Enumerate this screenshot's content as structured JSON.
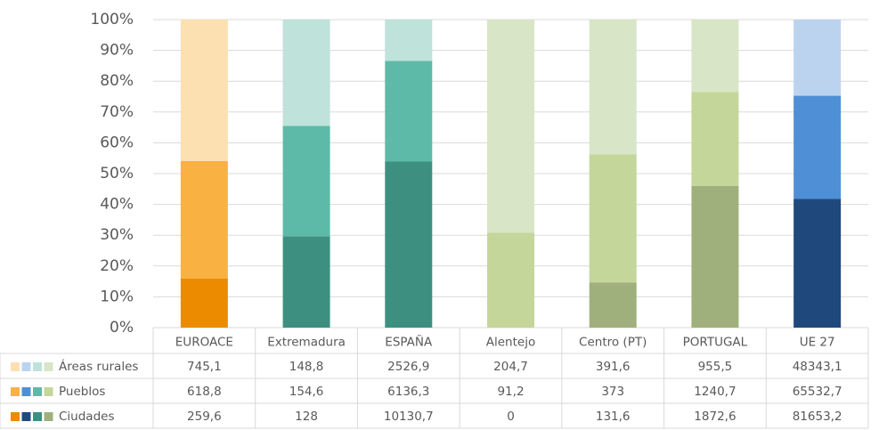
{
  "chart_data": {
    "type": "bar",
    "stacked_percent": true,
    "grid": true,
    "categories": [
      "EUROACE",
      "Extremadura",
      "ESPAÑA",
      "Alentejo",
      "Centro (PT)",
      "PORTUGAL",
      "UE 27"
    ],
    "ylim": [
      0,
      100
    ],
    "yticks": [
      {
        "value": 0,
        "label": "0%"
      },
      {
        "value": 10,
        "label": "10%"
      },
      {
        "value": 20,
        "label": "20%"
      },
      {
        "value": 30,
        "label": "30%"
      },
      {
        "value": 40,
        "label": "40%"
      },
      {
        "value": 50,
        "label": "50%"
      },
      {
        "value": 60,
        "label": "60%"
      },
      {
        "value": 70,
        "label": "70%"
      },
      {
        "value": 80,
        "label": "80%"
      },
      {
        "value": 90,
        "label": "90%"
      },
      {
        "value": 100,
        "label": "100%"
      }
    ],
    "series": [
      {
        "name": "Ciudades",
        "values": [
          259.6,
          128,
          10130.7,
          0,
          131.6,
          1872.6,
          81653.2
        ],
        "value_labels": [
          "259,6",
          "128",
          "10130,7",
          "0",
          "131,6",
          "1872,6",
          "81653,2"
        ],
        "color": [
          "#ed8b00",
          "#3d9080",
          "#3d9080",
          "#9fb07c",
          "#9fb07c",
          "#9fb07c",
          "#1f497d"
        ],
        "legend_colors": [
          "#ed8b00",
          "#1f497d",
          "#3d9080",
          "#9fb07c"
        ]
      },
      {
        "name": "Pueblos",
        "values": [
          618.8,
          154.6,
          6136.3,
          91.2,
          373,
          1240.7,
          65532.7
        ],
        "value_labels": [
          "618,8",
          "154,6",
          "6136,3",
          "91,2",
          "373",
          "1240,7",
          "65532,7"
        ],
        "color": [
          "#f9b142",
          "#5dbaa8",
          "#5dbaa8",
          "#c4d69a",
          "#c4d69a",
          "#c4d69a",
          "#4f8fd6"
        ],
        "legend_colors": [
          "#f9b142",
          "#4f8fd6",
          "#5dbaa8",
          "#c4d69a"
        ]
      },
      {
        "name": "Áreas rurales",
        "values": [
          745.1,
          148.8,
          2526.9,
          204.7,
          391.6,
          955.5,
          48343.1
        ],
        "value_labels": [
          "745,1",
          "148,8",
          "2526,9",
          "204,7",
          "391,6",
          "955,5",
          "48343,1"
        ],
        "color": [
          "#fde0b2",
          "#bfe2da",
          "#bfe2da",
          "#d8e5c6",
          "#d8e5c6",
          "#d8e5c6",
          "#bcd3ef"
        ],
        "legend_colors": [
          "#fde0b2",
          "#bcd3ef",
          "#bfe2da",
          "#d8e5c6"
        ]
      }
    ]
  }
}
